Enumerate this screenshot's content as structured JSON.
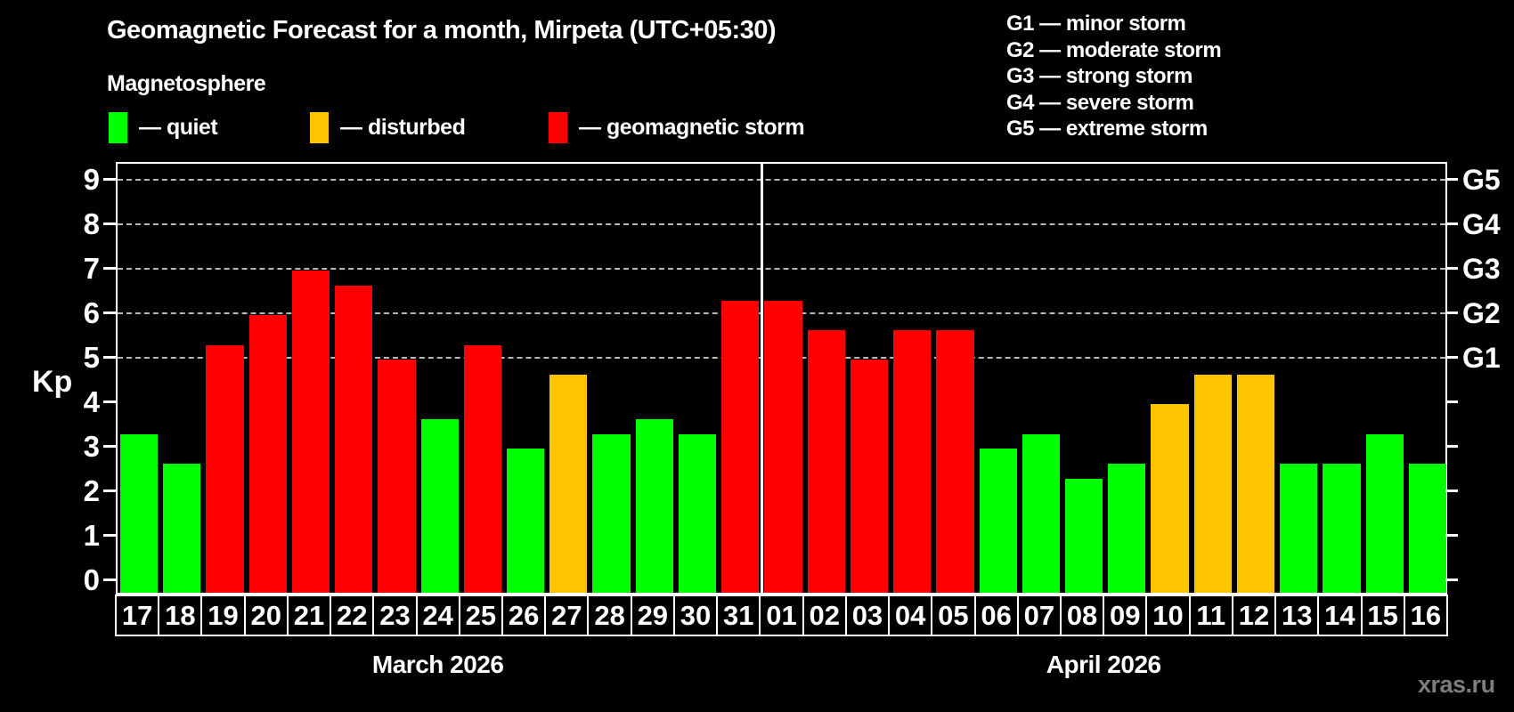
{
  "header": {
    "title": "Geomagnetic Forecast for a month, Mirpeta (UTC+05:30)",
    "subtitle": "Magnetosphere"
  },
  "legend": {
    "items": [
      {
        "status": "quiet",
        "label": "— quiet",
        "color": "#00ff00"
      },
      {
        "status": "disturbed",
        "label": "— disturbed",
        "color": "#ffc400"
      },
      {
        "status": "storm",
        "label": "— geomagnetic storm",
        "color": "#ff0000"
      }
    ]
  },
  "g_legend": {
    "lines": [
      "G1 — minor storm",
      "G2 — moderate storm",
      "G3 — strong storm",
      "G4 — severe storm",
      "G5 — extreme storm"
    ]
  },
  "chart_data": {
    "type": "bar",
    "title": "Geomagnetic Forecast for a month, Mirpeta (UTC+05:30)",
    "ylabel": "Kp",
    "ylim": [
      0,
      9
    ],
    "yticks": [
      0,
      1,
      2,
      3,
      4,
      5,
      6,
      7,
      8,
      9
    ],
    "gridlines": [
      5,
      6,
      7,
      8,
      9
    ],
    "grid": "dashed, horizontal, at Kp 5-9 only",
    "legend_position": "top",
    "right_axis": {
      "labels": [
        {
          "kp": 5,
          "label": "G1"
        },
        {
          "kp": 6,
          "label": "G2"
        },
        {
          "kp": 7,
          "label": "G3"
        },
        {
          "kp": 8,
          "label": "G4"
        },
        {
          "kp": 9,
          "label": "G5"
        }
      ]
    },
    "categories": [
      "17",
      "18",
      "19",
      "20",
      "21",
      "22",
      "23",
      "24",
      "25",
      "26",
      "27",
      "28",
      "29",
      "30",
      "31",
      "01",
      "02",
      "03",
      "04",
      "05",
      "06",
      "07",
      "08",
      "09",
      "10",
      "11",
      "12",
      "13",
      "14",
      "15",
      "16"
    ],
    "values": [
      3.33,
      2.67,
      5.33,
      6.0,
      7.0,
      6.67,
      5.0,
      3.67,
      5.33,
      3.0,
      4.67,
      3.33,
      3.67,
      3.33,
      6.33,
      6.33,
      5.67,
      5.0,
      5.67,
      5.67,
      3.0,
      3.33,
      2.33,
      2.67,
      4.0,
      4.67,
      4.67,
      2.67,
      2.67,
      3.33,
      2.67
    ],
    "statuses": [
      "quiet",
      "quiet",
      "storm",
      "storm",
      "storm",
      "storm",
      "storm",
      "quiet",
      "storm",
      "quiet",
      "disturbed",
      "quiet",
      "quiet",
      "quiet",
      "storm",
      "storm",
      "storm",
      "storm",
      "storm",
      "storm",
      "quiet",
      "quiet",
      "quiet",
      "quiet",
      "disturbed",
      "disturbed",
      "disturbed",
      "quiet",
      "quiet",
      "quiet",
      "quiet"
    ],
    "colors": {
      "quiet": "#00ff00",
      "disturbed": "#ffc400",
      "storm": "#ff0000"
    },
    "months": [
      {
        "label": "March 2026",
        "start_index": 0,
        "count": 15
      },
      {
        "label": "April 2026",
        "start_index": 15,
        "count": 16
      }
    ],
    "divider_after_index": 14
  },
  "watermark": {
    "label": "xras.ru"
  }
}
